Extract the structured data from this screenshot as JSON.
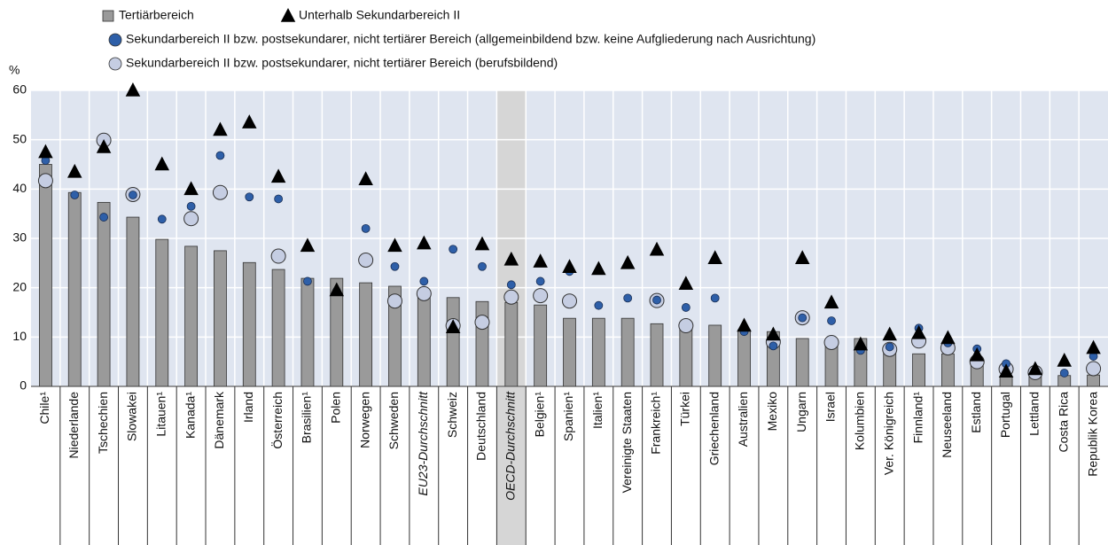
{
  "chart_data": {
    "type": "bar",
    "y_label": "%",
    "categories": [
      "Chile¹",
      "Niederlande",
      "Tschechien",
      "Slowakei",
      "Litauen¹",
      "Kanada¹",
      "Dänemark",
      "Irland",
      "Österreich",
      "Brasilien¹",
      "Polen",
      "Norwegen",
      "Schweden",
      "EU23-Durchschnitt",
      "Schweiz",
      "Deutschland",
      "OECD-Durchschnitt",
      "Belgien¹",
      "Spanien¹",
      "Italien¹",
      "Vereinigte Staaten",
      "Frankreich¹",
      "Türkei",
      "Griechenland",
      "Australien",
      "Mexiko",
      "Ungarn",
      "Israel",
      "Kolumbien",
      "Ver. Königreich",
      "Finnland¹",
      "Neuseeland",
      "Estland",
      "Portugal",
      "Lettland",
      "Costa Rica",
      "Republik Korea"
    ],
    "series": [
      {
        "name": "Tertiärbereich",
        "color": "#9a9a9a",
        "marker": "bar",
        "values": [
          45,
          39.3,
          37.3,
          34.3,
          29.8,
          28.4,
          27.5,
          25.1,
          23.7,
          21.9,
          21.9,
          21,
          20.3,
          19,
          18,
          17.2,
          17,
          16.5,
          13.8,
          13.8,
          13.8,
          12.7,
          12,
          12.4,
          11.5,
          11.1,
          9.7,
          9,
          9.7,
          8,
          6.6,
          6.6,
          4.7,
          2,
          2,
          2.2,
          2.3
        ]
      },
      {
        "name": "Unterhalb Sekundarbereich II",
        "color": "#000000",
        "marker": "triangle",
        "values": [
          47.5,
          43.5,
          48.5,
          60,
          45,
          40,
          52,
          53.5,
          42.5,
          28.5,
          19.5,
          42,
          28.5,
          29,
          12,
          28.8,
          25.7,
          25.3,
          24.2,
          23.8,
          25,
          27.7,
          20.8,
          26,
          12.3,
          10.5,
          26,
          17,
          8.5,
          10.5,
          10.8,
          9.8,
          6.3,
          3,
          3.5,
          5.2,
          7.8
        ]
      },
      {
        "name": "Sekundarbereich II bzw. postsekundarer, nicht tertiärer Bereich (allgemeinbildend bzw. keine Aufgliederung nach Ausrichtung)",
        "color": "#2e5fa8",
        "marker": "circle",
        "values": [
          45.8,
          38.8,
          34.3,
          38.8,
          33.9,
          36.5,
          46.8,
          38.4,
          38,
          21.3,
          19.3,
          32,
          24.3,
          21.3,
          27.8,
          24.3,
          20.6,
          21.3,
          23.3,
          16.4,
          17.9,
          17.5,
          16,
          17.9,
          11.1,
          8.2,
          13.9,
          13.3,
          7.3,
          8,
          11.8,
          8.8,
          7.6,
          4.6,
          3.2,
          2.7,
          6.1
        ]
      },
      {
        "name": "Sekundarbereich II bzw. postsekundarer, nicht tertiärer Bereich (berufsbildend)",
        "color": "#c5cde2",
        "marker": "big-circle",
        "values": [
          41.7,
          null,
          49.9,
          38.9,
          null,
          34,
          39.3,
          null,
          26.4,
          null,
          null,
          25.6,
          17.3,
          18.8,
          12.3,
          13,
          18.1,
          18.4,
          17.3,
          null,
          null,
          17.4,
          12.3,
          null,
          null,
          9,
          13.9,
          8.9,
          null,
          7.5,
          9.2,
          7.8,
          5,
          3.5,
          2.8,
          null,
          3.6
        ]
      }
    ],
    "ylim": [
      0,
      60
    ],
    "yticks": [
      0,
      10,
      20,
      30,
      40,
      50,
      60
    ],
    "grid": true
  }
}
